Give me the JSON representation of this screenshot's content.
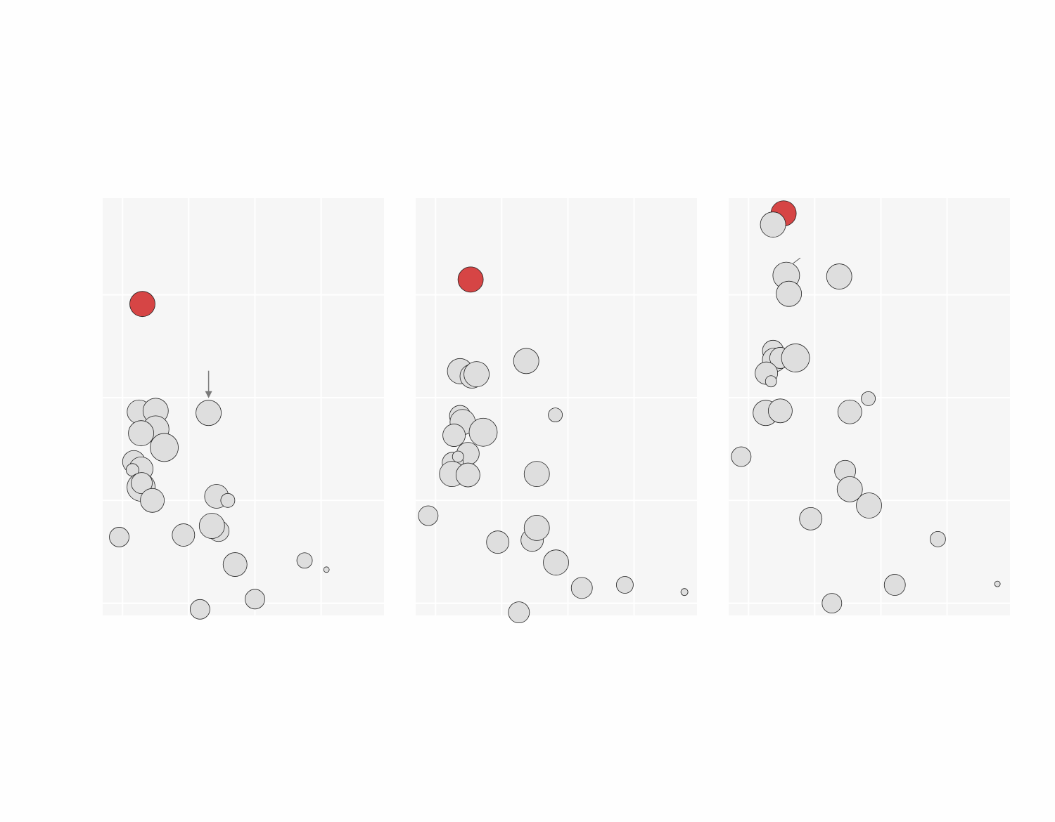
{
  "chart_data": [
    {
      "type": "scatter",
      "xlim": [
        0,
        4.25
      ],
      "ylim": [
        0,
        4.1
      ],
      "xgrid": [
        0.3,
        1.3,
        2.3,
        3.3
      ],
      "ygrid": [
        0.12,
        1.13,
        2.14,
        3.15
      ],
      "colors": {
        "highlight": "#d64545",
        "default": "#dedede",
        "edge": "#222222"
      },
      "highlight_index": 0,
      "annotation": {
        "type": "arrow-down",
        "target_index": 9
      },
      "points": [
        {
          "x": 0.6,
          "y": 3.06,
          "size": 18
        },
        {
          "x": 0.55,
          "y": 2.0,
          "size": 17
        },
        {
          "x": 0.8,
          "y": 2.01,
          "size": 18
        },
        {
          "x": 0.8,
          "y": 1.83,
          "size": 19
        },
        {
          "x": 0.58,
          "y": 1.79,
          "size": 18
        },
        {
          "x": 0.93,
          "y": 1.65,
          "size": 20
        },
        {
          "x": 0.47,
          "y": 1.51,
          "size": 16
        },
        {
          "x": 0.58,
          "y": 1.44,
          "size": 17
        },
        {
          "x": 0.45,
          "y": 1.43,
          "size": 9
        },
        {
          "x": 1.6,
          "y": 1.99,
          "size": 18
        },
        {
          "x": 0.58,
          "y": 1.26,
          "size": 20
        },
        {
          "x": 0.59,
          "y": 1.3,
          "size": 15
        },
        {
          "x": 0.75,
          "y": 1.13,
          "size": 17
        },
        {
          "x": 1.72,
          "y": 1.17,
          "size": 17
        },
        {
          "x": 1.89,
          "y": 1.13,
          "size": 10
        },
        {
          "x": 0.25,
          "y": 0.77,
          "size": 14
        },
        {
          "x": 1.22,
          "y": 0.79,
          "size": 16
        },
        {
          "x": 1.75,
          "y": 0.83,
          "size": 15
        },
        {
          "x": 1.65,
          "y": 0.88,
          "size": 18
        },
        {
          "x": 2.0,
          "y": 0.5,
          "size": 17
        },
        {
          "x": 3.05,
          "y": 0.54,
          "size": 11
        },
        {
          "x": 3.38,
          "y": 0.45,
          "size": 4
        },
        {
          "x": 2.3,
          "y": 0.16,
          "size": 14
        },
        {
          "x": 1.47,
          "y": 0.06,
          "size": 14
        }
      ]
    },
    {
      "type": "scatter",
      "xlim": [
        0,
        4.25
      ],
      "ylim": [
        0,
        4.1
      ],
      "xgrid": [
        0.3,
        1.3,
        2.3,
        3.3
      ],
      "ygrid": [
        0.12,
        1.13,
        2.14,
        3.15
      ],
      "colors": {
        "highlight": "#d64545",
        "default": "#dedede",
        "edge": "#222222"
      },
      "highlight_index": 0,
      "points": [
        {
          "x": 0.83,
          "y": 3.3,
          "size": 18
        },
        {
          "x": 0.67,
          "y": 2.4,
          "size": 18
        },
        {
          "x": 0.85,
          "y": 2.35,
          "size": 17
        },
        {
          "x": 0.92,
          "y": 2.37,
          "size": 18
        },
        {
          "x": 1.67,
          "y": 2.5,
          "size": 18
        },
        {
          "x": 2.11,
          "y": 1.97,
          "size": 10
        },
        {
          "x": 0.67,
          "y": 1.96,
          "size": 15
        },
        {
          "x": 0.71,
          "y": 1.9,
          "size": 18
        },
        {
          "x": 0.58,
          "y": 1.77,
          "size": 16
        },
        {
          "x": 1.02,
          "y": 1.8,
          "size": 20
        },
        {
          "x": 0.79,
          "y": 1.59,
          "size": 16
        },
        {
          "x": 0.56,
          "y": 1.5,
          "size": 15
        },
        {
          "x": 0.64,
          "y": 1.56,
          "size": 8
        },
        {
          "x": 0.55,
          "y": 1.39,
          "size": 18
        },
        {
          "x": 0.79,
          "y": 1.38,
          "size": 17
        },
        {
          "x": 1.83,
          "y": 1.39,
          "size": 18
        },
        {
          "x": 0.19,
          "y": 0.98,
          "size": 14
        },
        {
          "x": 1.76,
          "y": 0.74,
          "size": 16
        },
        {
          "x": 1.83,
          "y": 0.86,
          "size": 18
        },
        {
          "x": 1.24,
          "y": 0.72,
          "size": 16
        },
        {
          "x": 2.12,
          "y": 0.52,
          "size": 18
        },
        {
          "x": 2.51,
          "y": 0.27,
          "size": 15
        },
        {
          "x": 3.16,
          "y": 0.3,
          "size": 12
        },
        {
          "x": 4.06,
          "y": 0.23,
          "size": 5
        },
        {
          "x": 1.56,
          "y": 0.03,
          "size": 15
        }
      ]
    },
    {
      "type": "scatter",
      "xlim": [
        0,
        4.25
      ],
      "ylim": [
        0,
        4.1
      ],
      "xgrid": [
        0.3,
        1.3,
        2.3,
        3.3
      ],
      "ygrid": [
        0.12,
        1.13,
        2.14,
        3.15
      ],
      "colors": {
        "highlight": "#d64545",
        "default": "#dedede",
        "edge": "#222222"
      },
      "highlight_index": 0,
      "annotation": {
        "type": "tick",
        "target_index": 2
      },
      "points": [
        {
          "x": 0.83,
          "y": 3.95,
          "size": 18
        },
        {
          "x": 0.67,
          "y": 3.84,
          "size": 18
        },
        {
          "x": 0.87,
          "y": 3.34,
          "size": 19
        },
        {
          "x": 1.67,
          "y": 3.33,
          "size": 18
        },
        {
          "x": 0.91,
          "y": 3.16,
          "size": 18
        },
        {
          "x": 0.67,
          "y": 2.6,
          "size": 15
        },
        {
          "x": 0.69,
          "y": 2.51,
          "size": 17
        },
        {
          "x": 0.78,
          "y": 2.53,
          "size": 15
        },
        {
          "x": 1.01,
          "y": 2.53,
          "size": 20
        },
        {
          "x": 0.57,
          "y": 2.38,
          "size": 16
        },
        {
          "x": 0.64,
          "y": 2.3,
          "size": 8
        },
        {
          "x": 2.11,
          "y": 2.13,
          "size": 10
        },
        {
          "x": 0.56,
          "y": 1.99,
          "size": 18
        },
        {
          "x": 0.78,
          "y": 2.01,
          "size": 17
        },
        {
          "x": 1.83,
          "y": 2.0,
          "size": 17
        },
        {
          "x": 0.19,
          "y": 1.56,
          "size": 14
        },
        {
          "x": 1.76,
          "y": 1.42,
          "size": 15
        },
        {
          "x": 1.83,
          "y": 1.24,
          "size": 18
        },
        {
          "x": 2.12,
          "y": 1.08,
          "size": 18
        },
        {
          "x": 1.24,
          "y": 0.95,
          "size": 16
        },
        {
          "x": 3.16,
          "y": 0.75,
          "size": 11
        },
        {
          "x": 2.51,
          "y": 0.3,
          "size": 15
        },
        {
          "x": 4.06,
          "y": 0.31,
          "size": 4
        },
        {
          "x": 1.56,
          "y": 0.12,
          "size": 14
        }
      ]
    }
  ]
}
